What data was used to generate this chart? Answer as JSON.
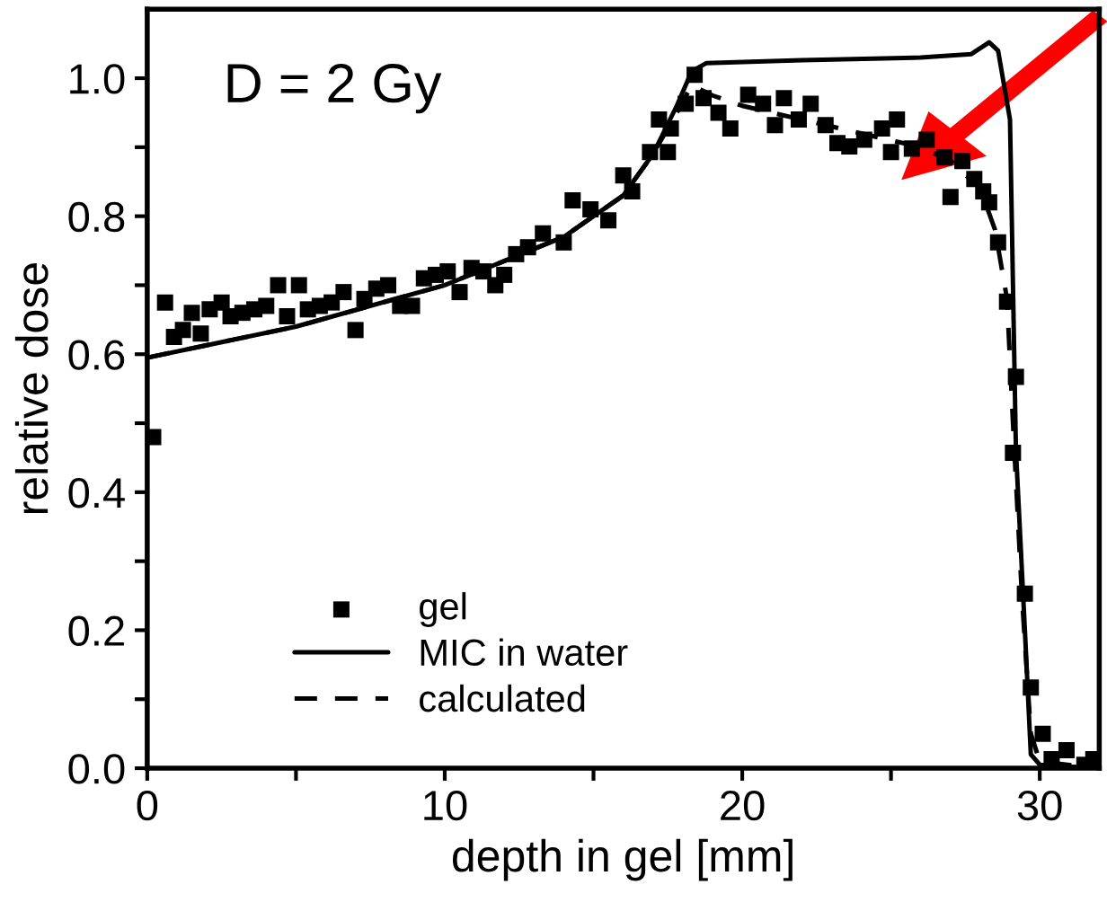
{
  "chart_data": {
    "type": "scatter",
    "xlabel": "depth in gel [mm]",
    "ylabel": "relative dose",
    "annotations": [
      "D = 2 Gy"
    ],
    "xlim": [
      0,
      32
    ],
    "ylim": [
      0,
      1.1
    ],
    "xticks": [
      0,
      {
        "value": 5,
        "label": null
      },
      10,
      {
        "value": 15,
        "label": null
      },
      20,
      {
        "value": 25,
        "label": null
      },
      30
    ],
    "yticks": [
      {
        "value": 0,
        "label": "0.0"
      },
      {
        "value": 0.1,
        "label": null
      },
      {
        "value": 0.2,
        "label": "0.2"
      },
      {
        "value": 0.3,
        "label": null
      },
      {
        "value": 0.4,
        "label": "0.4"
      },
      {
        "value": 0.5,
        "label": null
      },
      {
        "value": 0.6,
        "label": "0.6"
      },
      {
        "value": 0.7,
        "label": null
      },
      {
        "value": 0.8,
        "label": "0.8"
      },
      {
        "value": 0.9,
        "label": null
      },
      {
        "value": 1.0,
        "label": "1.0"
      }
    ],
    "grid": false,
    "legend": "bottom",
    "series": [
      {
        "name": "gel",
        "marker": "square",
        "color": "#000000",
        "x": [
          0.2,
          0.6,
          0.9,
          1.2,
          1.5,
          1.8,
          2.1,
          2.5,
          2.8,
          3.2,
          3.6,
          4.0,
          4.4,
          4.7,
          5.1,
          5.4,
          5.8,
          6.2,
          6.6,
          7.0,
          7.3,
          7.7,
          8.1,
          8.5,
          8.9,
          9.3,
          9.7,
          10.1,
          10.5,
          10.9,
          11.3,
          11.7,
          12.0,
          12.4,
          12.8,
          13.3,
          14.0,
          14.3,
          14.9,
          15.5,
          16.0,
          16.3,
          16.9,
          17.2,
          17.5,
          17.6,
          18.1,
          18.4,
          18.7,
          19.2,
          19.6,
          20.2,
          20.7,
          21.1,
          21.4,
          21.9,
          22.3,
          22.8,
          23.2,
          23.6,
          24.1,
          24.7,
          25.0,
          25.2,
          25.7,
          26.2,
          26.8,
          27.0,
          27.4,
          27.8,
          28.1,
          28.3,
          28.6,
          28.9,
          29.1,
          29.2,
          29.5,
          29.7,
          30.1,
          30.4,
          30.9,
          31.5,
          31.8
        ],
        "values": [
          0.48,
          0.675,
          0.625,
          0.635,
          0.66,
          0.63,
          0.665,
          0.675,
          0.655,
          0.66,
          0.665,
          0.67,
          0.7,
          0.655,
          0.7,
          0.665,
          0.67,
          0.675,
          0.69,
          0.635,
          0.68,
          0.695,
          0.7,
          0.67,
          0.67,
          0.71,
          0.715,
          0.72,
          0.69,
          0.725,
          0.72,
          0.7,
          0.715,
          0.745,
          0.755,
          0.775,
          0.762,
          0.823,
          0.81,
          0.794,
          0.859,
          0.836,
          0.893,
          0.94,
          0.893,
          0.927,
          0.963,
          1.005,
          0.971,
          0.95,
          0.927,
          0.976,
          0.963,
          0.932,
          0.971,
          0.94,
          0.963,
          0.932,
          0.906,
          0.901,
          0.911,
          0.927,
          0.893,
          0.94,
          0.898,
          0.911,
          0.885,
          0.828,
          0.88,
          0.854,
          0.836,
          0.82,
          0.762,
          0.676,
          0.457,
          0.567,
          0.253,
          0.117,
          0.05,
          0.013,
          0.026,
          0.005,
          0.013
        ]
      },
      {
        "name": "MIC in water",
        "type": "line",
        "line_style": "solid",
        "color": "#000000",
        "x": [
          0,
          5,
          10,
          14,
          16,
          17,
          17.8,
          18.3,
          18.8,
          22,
          26,
          27.7,
          28.3,
          28.6,
          29.0,
          29.2,
          29.5,
          29.7,
          30,
          31.9
        ],
        "values": [
          0.595,
          0.64,
          0.7,
          0.77,
          0.83,
          0.89,
          0.96,
          1.01,
          1.022,
          1.026,
          1.03,
          1.035,
          1.052,
          1.04,
          0.94,
          0.46,
          0.2,
          0.02,
          0.005,
          0.0
        ]
      },
      {
        "name": "calculated",
        "type": "line",
        "line_style": "dashed",
        "color": "#000000",
        "x": [
          0,
          5,
          10,
          14,
          16,
          17,
          17.8,
          18.3,
          19,
          20,
          22,
          24,
          26,
          27,
          28,
          28.5,
          28.9,
          29.1,
          29.4,
          29.7,
          30,
          31.9
        ],
        "values": [
          0.595,
          0.64,
          0.7,
          0.77,
          0.83,
          0.89,
          0.95,
          0.99,
          0.975,
          0.96,
          0.94,
          0.92,
          0.9,
          0.88,
          0.84,
          0.78,
          0.68,
          0.5,
          0.25,
          0.05,
          0.01,
          0.0
        ]
      }
    ]
  }
}
